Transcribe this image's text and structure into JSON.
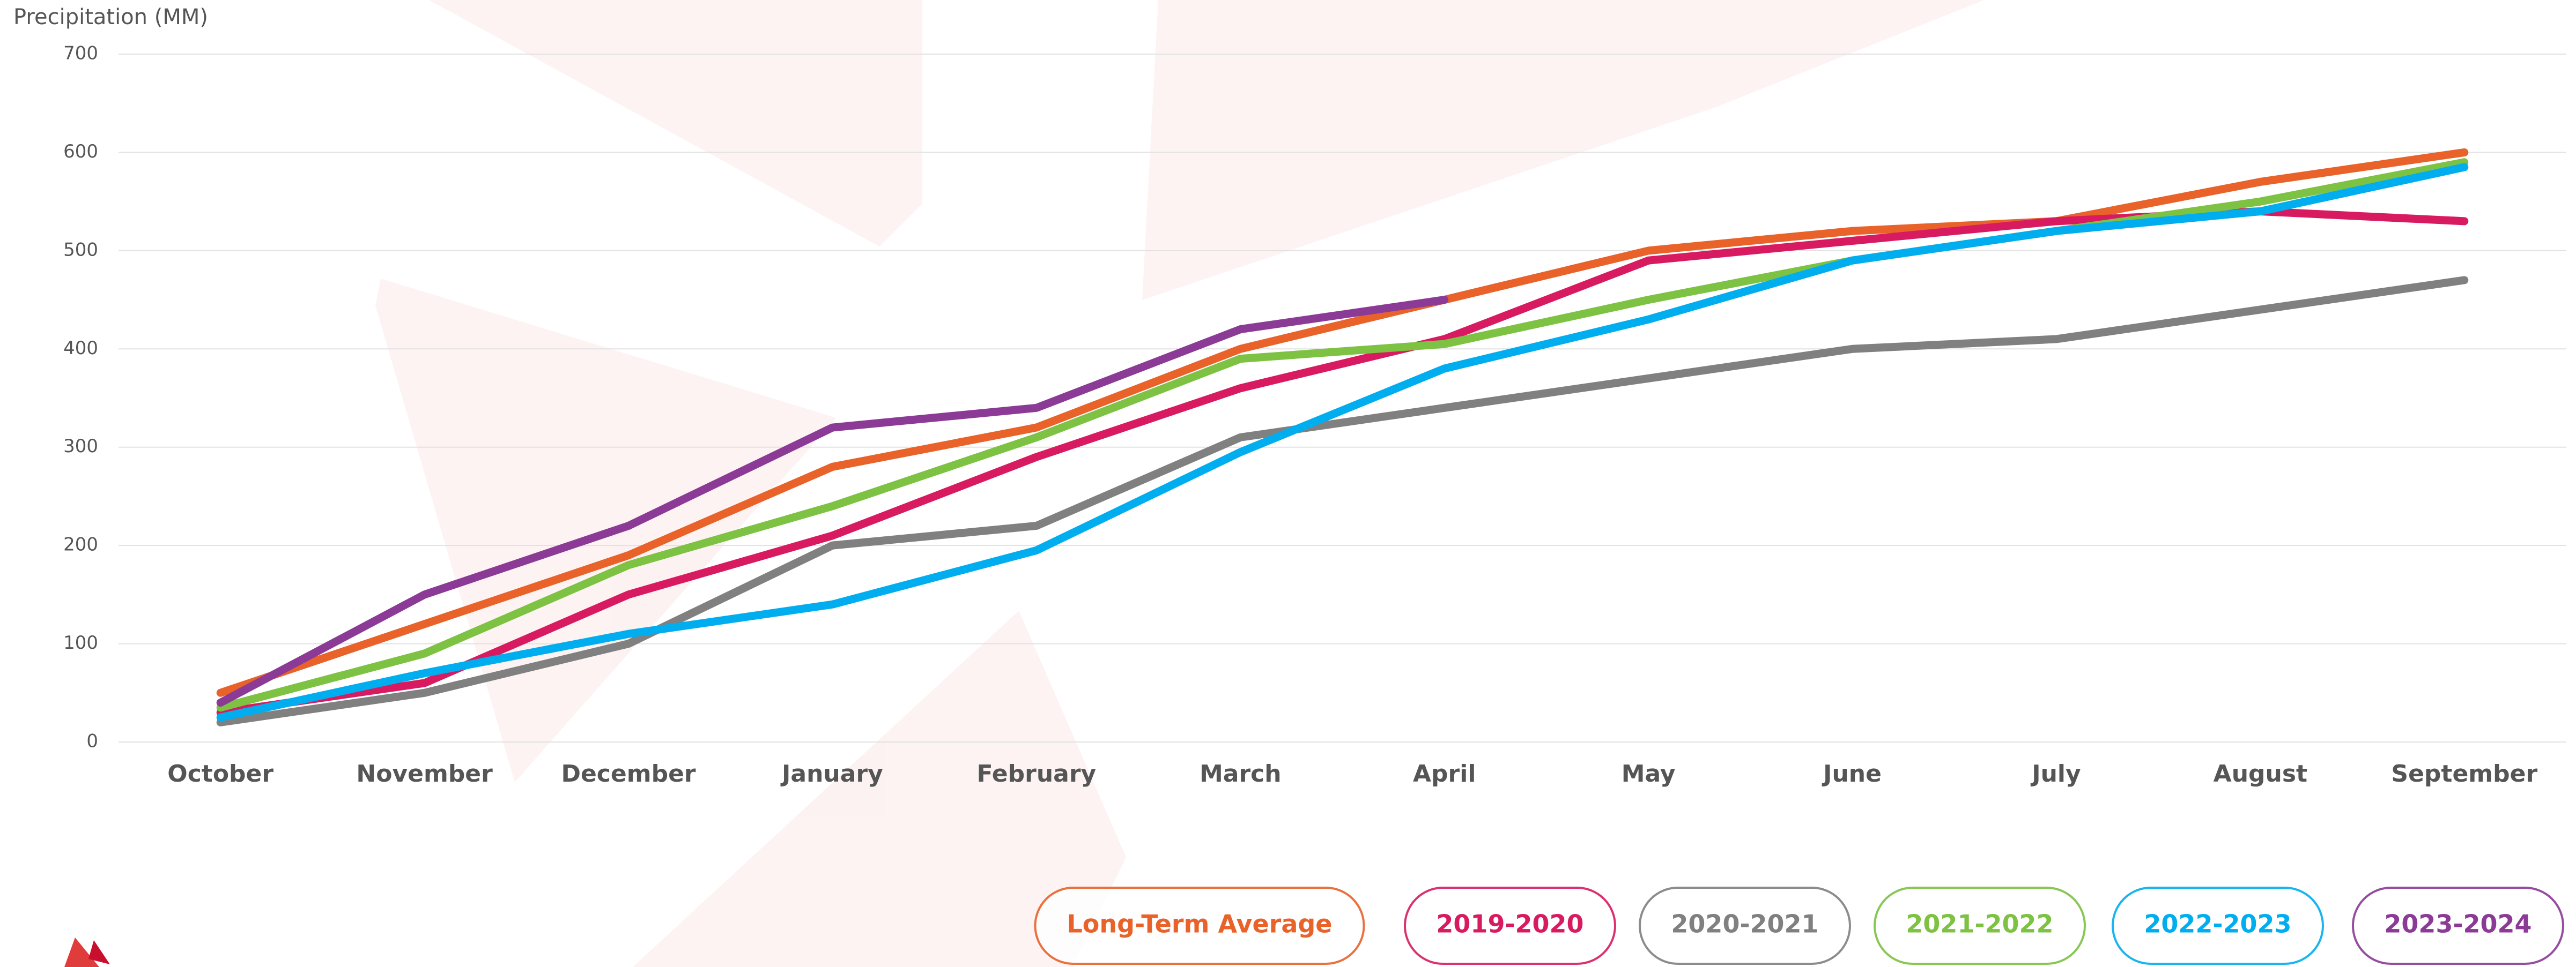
{
  "chart_data": {
    "type": "line",
    "y_label": "Precipitation (MM)",
    "categories": [
      "October",
      "November",
      "December",
      "January",
      "February",
      "March",
      "April",
      "May",
      "June",
      "July",
      "August",
      "September"
    ],
    "ylim": [
      0,
      700
    ],
    "yticks": [
      0,
      100,
      200,
      300,
      400,
      500,
      600,
      700
    ],
    "grid": true,
    "series": [
      {
        "name": "Long-Term Average",
        "color": "#e8622a",
        "values": [
          50,
          120,
          190,
          280,
          320,
          400,
          450,
          500,
          520,
          530,
          570,
          600
        ]
      },
      {
        "name": "2019-2020",
        "color": "#d81b60",
        "values": [
          30,
          60,
          150,
          210,
          290,
          360,
          410,
          490,
          510,
          530,
          540,
          530
        ]
      },
      {
        "name": "2020-2021",
        "color": "#808080",
        "values": [
          20,
          50,
          100,
          200,
          220,
          310,
          340,
          370,
          400,
          410,
          440,
          470
        ]
      },
      {
        "name": "2021-2022",
        "color": "#7dc242",
        "values": [
          35,
          90,
          180,
          240,
          310,
          390,
          405,
          450,
          490,
          520,
          550,
          590
        ]
      },
      {
        "name": "2022-2023",
        "color": "#00aeef",
        "values": [
          25,
          70,
          110,
          140,
          195,
          295,
          380,
          430,
          490,
          520,
          540,
          585
        ]
      },
      {
        "name": "2023-2024",
        "color": "#8b3a96",
        "values": [
          40,
          150,
          220,
          320,
          340,
          420,
          450,
          null,
          null,
          null,
          null,
          null
        ]
      }
    ]
  }
}
